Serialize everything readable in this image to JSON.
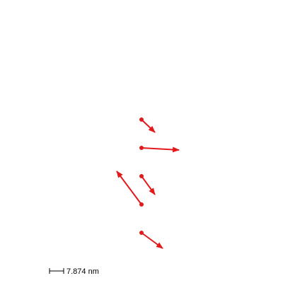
{
  "figure": {
    "arrow_color": "#e31a1c",
    "background": "#ffffff"
  },
  "scale_bar": {
    "label": "7.874 nm",
    "color": "#000000"
  }
}
